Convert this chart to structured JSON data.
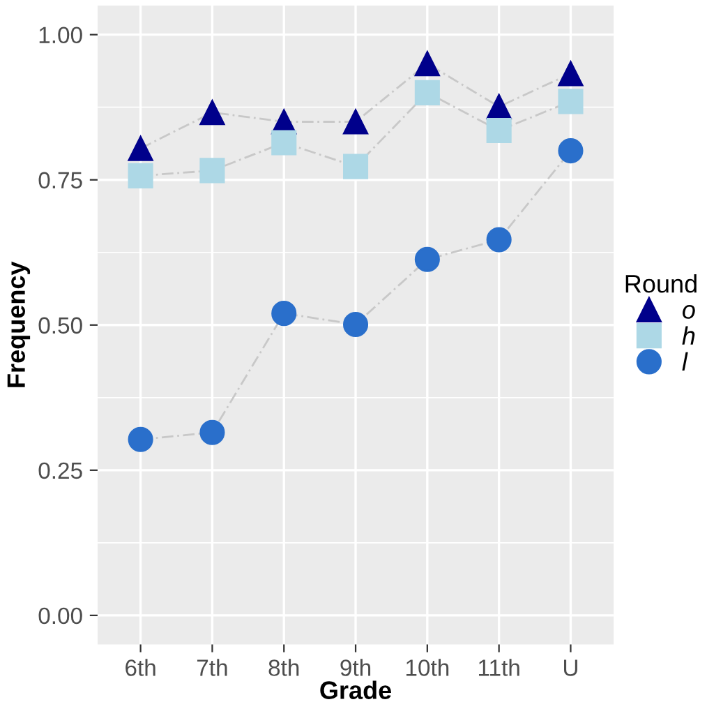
{
  "chart_data": {
    "type": "line",
    "xlabel": "Grade",
    "ylabel": "Frequency",
    "legend_title": "Round",
    "legend": "right",
    "grid": true,
    "line_style": "dashed",
    "categories": [
      "6th",
      "7th",
      "8th",
      "9th",
      "10th",
      "11th",
      "U"
    ],
    "ylim": [
      -0.05,
      1.05
    ],
    "yticks": [
      {
        "value": 0,
        "label": "0.00"
      },
      {
        "value": 0.25,
        "label": "0.25"
      },
      {
        "value": 0.5,
        "label": "0.50"
      },
      {
        "value": 0.75,
        "label": "0.75"
      },
      {
        "value": 1,
        "label": "1.00"
      }
    ],
    "series": [
      {
        "name": "o",
        "color": "#00008b",
        "marker": "triangle",
        "values": [
          0.804,
          0.866,
          0.85,
          0.85,
          0.95,
          0.876,
          0.933
        ]
      },
      {
        "name": "h",
        "color": "#add8e6",
        "marker": "square",
        "values": [
          0.757,
          0.766,
          0.814,
          0.773,
          0.9,
          0.835,
          0.885
        ]
      },
      {
        "name": "l",
        "color": "#2a6fcb",
        "marker": "circle",
        "values": [
          0.303,
          0.315,
          0.52,
          0.501,
          0.613,
          0.647,
          0.8
        ]
      }
    ]
  }
}
